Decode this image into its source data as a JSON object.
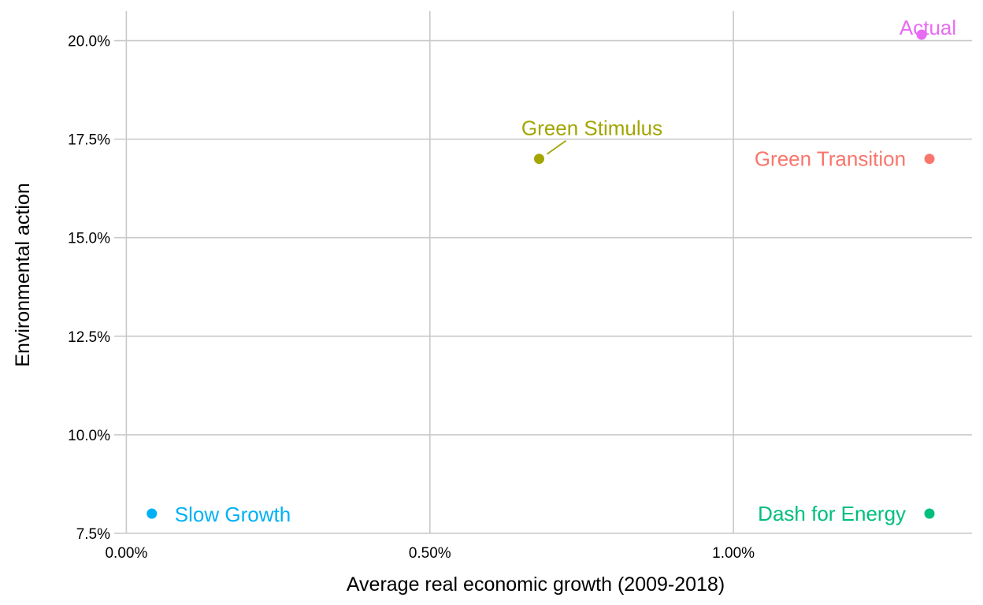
{
  "chart_data": {
    "type": "scatter",
    "title": "",
    "xlabel": "Average real economic growth (2009-2018)",
    "ylabel": "Environmental action",
    "xlim": [
      -0.0002,
      0.01393
    ],
    "ylim": [
      0.075,
      0.2075
    ],
    "x_ticks": [
      0.0,
      0.005,
      0.01
    ],
    "x_tick_labels": [
      "0.00%",
      "0.50%",
      "1.00%"
    ],
    "y_ticks": [
      0.075,
      0.1,
      0.125,
      0.15,
      0.175,
      0.2
    ],
    "y_tick_labels": [
      "7.5%",
      "10.0%",
      "12.5%",
      "15.0%",
      "17.5%",
      "20.0%"
    ],
    "grid": true,
    "legend": "none",
    "points": [
      {
        "label": "Actual",
        "x": 0.0131,
        "y": 0.2015,
        "color": "#E76BF3",
        "label_pos": "above"
      },
      {
        "label": "Green Stimulus",
        "x": 0.0068,
        "y": 0.17,
        "color": "#A3A500",
        "label_pos": "above-right-leader"
      },
      {
        "label": "Green Transition",
        "x": 0.01323,
        "y": 0.17,
        "color": "#F8766D",
        "label_pos": "left"
      },
      {
        "label": "Slow Growth",
        "x": 0.00042,
        "y": 0.08,
        "color": "#00B0F6",
        "label_pos": "right"
      },
      {
        "label": "Dash for Energy",
        "x": 0.01323,
        "y": 0.08,
        "color": "#00BF7D",
        "label_pos": "left"
      }
    ]
  }
}
